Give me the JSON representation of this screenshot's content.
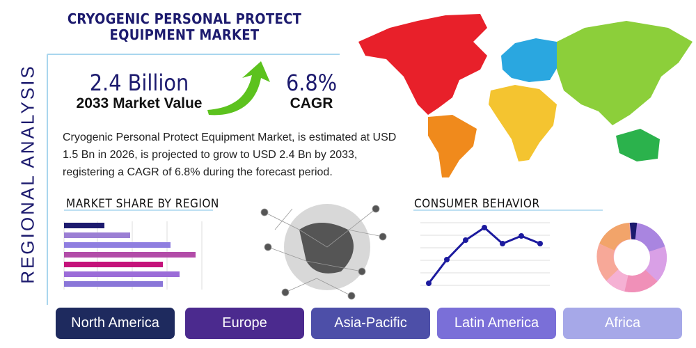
{
  "header": {
    "title": "CRYOGENIC PERSONAL PROTECT EQUIPMENT MARKET",
    "side_label": "REGIONAL ANALYSIS"
  },
  "stats": {
    "market_value": "2.4 Billion",
    "market_value_label": "2033 Market Value",
    "cagr": "6.8%",
    "cagr_label": "CAGR"
  },
  "description": "Cryogenic Personal Protect Equipment Market, is estimated at USD 1.5 Bn in 2026, is projected to grow to USD 2.4 Bn by 2033, registering a CAGR of 6.8% during the forecast period.",
  "sections": {
    "market_share": "MARKET SHARE BY REGION",
    "consumer_behavior": "CONSUMER BEHAVIOR"
  },
  "regions": [
    "North America",
    "Europe",
    "Asia-Pacific",
    "Latin America",
    "Africa"
  ]
}
